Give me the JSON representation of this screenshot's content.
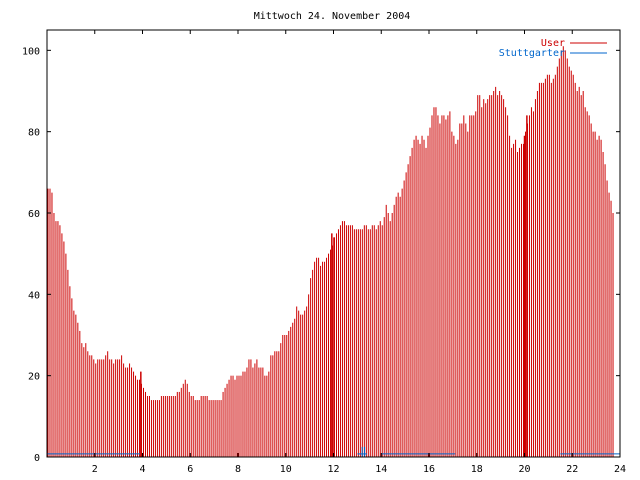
{
  "chart_data": {
    "type": "bar",
    "title": "Mittwoch 24. November 2004",
    "xlabel": "",
    "ylabel": "",
    "xlim": [
      0,
      24
    ],
    "ylim": [
      0,
      105
    ],
    "x_ticks": [
      "2",
      "4",
      "6",
      "8",
      "10",
      "12",
      "14",
      "16",
      "18",
      "20",
      "22",
      "24"
    ],
    "y_ticks": [
      "0",
      "20",
      "40",
      "60",
      "80",
      "100"
    ],
    "legend_position": "top-right",
    "grid": false,
    "sample_interval_minutes": 5,
    "series": [
      {
        "name": "User",
        "color": "#cc0000",
        "values": [
          66,
          66,
          65,
          60,
          58,
          58,
          57,
          55,
          53,
          50,
          46,
          42,
          39,
          36,
          35,
          33,
          31,
          28,
          27,
          28,
          26,
          25,
          25,
          24,
          23,
          24,
          24,
          24,
          24,
          25,
          26,
          24,
          24,
          23,
          24,
          24,
          24,
          25,
          23,
          22,
          22,
          23,
          22,
          21,
          20,
          19,
          19,
          18,
          17,
          16,
          15,
          15,
          14,
          14,
          14,
          14,
          14,
          15,
          15,
          15,
          15,
          15,
          15,
          15,
          15,
          16,
          16,
          17,
          18,
          19,
          18,
          16,
          15,
          15,
          14,
          14,
          14,
          15,
          15,
          15,
          15,
          14,
          14,
          14,
          14,
          14,
          14,
          14,
          16,
          17,
          18,
          19,
          20,
          20,
          19,
          20,
          20,
          20,
          21,
          21,
          22,
          24,
          24,
          22,
          23,
          24,
          22,
          22,
          22,
          20,
          20,
          21,
          25,
          25,
          26,
          26,
          26,
          28,
          30,
          30,
          30,
          31,
          32,
          33,
          34,
          37,
          36,
          35,
          35,
          36,
          37,
          40,
          44,
          46,
          48,
          49,
          49,
          47,
          48,
          48,
          49,
          50,
          51,
          52,
          54,
          55,
          56,
          57,
          58,
          58,
          57,
          57,
          57,
          57,
          56,
          56,
          56,
          56,
          56,
          57,
          57,
          56,
          56,
          57,
          57,
          56,
          57,
          58,
          57,
          59,
          62,
          60,
          58,
          60,
          62,
          64,
          65,
          64,
          66,
          68,
          70,
          72,
          74,
          76,
          78,
          79,
          78,
          77,
          79,
          78,
          76,
          79,
          81,
          84,
          86,
          86,
          84,
          82,
          84,
          84,
          83,
          84,
          85,
          80,
          79,
          77,
          78,
          82,
          82,
          84,
          82,
          80,
          84,
          84,
          84,
          85,
          89,
          89,
          86,
          88,
          87,
          88,
          89,
          89,
          90,
          91,
          89,
          90,
          89,
          88,
          86,
          84,
          79,
          76,
          77,
          78,
          75,
          76,
          77,
          77,
          80,
          82,
          84,
          86,
          85,
          88,
          90,
          92,
          92,
          92,
          93,
          94,
          94,
          92,
          93,
          94,
          96,
          98,
          100,
          101,
          100,
          98,
          96,
          95,
          94,
          92,
          90,
          91,
          89,
          90,
          86,
          85,
          84,
          82,
          80,
          80,
          78,
          79,
          78,
          75,
          72,
          68,
          65,
          63,
          60
        ],
        "spikes": [
          {
            "x": 3.93,
            "value": 21
          },
          {
            "x": 11.93,
            "value": 55
          },
          {
            "x": 12.02,
            "value": 54
          },
          {
            "x": 20.0,
            "value": 79
          },
          {
            "x": 20.1,
            "value": 84
          }
        ]
      },
      {
        "name": "Stuttgarter",
        "color": "#0066cc",
        "values_note": "near zero throughout",
        "segments": [
          {
            "x_start": 0.0,
            "x_end": 3.9,
            "value": 1
          },
          {
            "x_start": 13.0,
            "x_end": 13.4,
            "value": 1
          },
          {
            "x_start": 14.0,
            "x_end": 17.1,
            "value": 1
          },
          {
            "x_start": 21.5,
            "x_end": 24.0,
            "value": 1
          }
        ],
        "spikes": [
          {
            "x": 13.2,
            "value": 2
          },
          {
            "x": 13.3,
            "value": 2
          }
        ]
      }
    ]
  }
}
